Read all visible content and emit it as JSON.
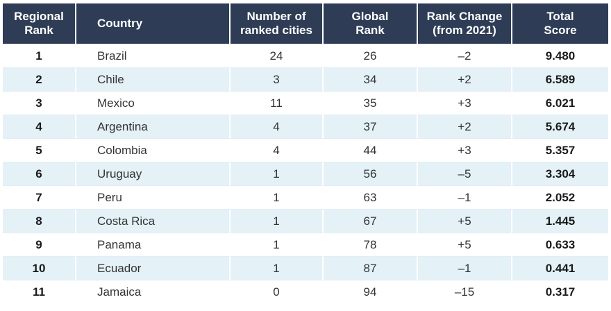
{
  "table": {
    "headers": [
      [
        "Regional",
        "Rank"
      ],
      [
        "Country"
      ],
      [
        "Number of",
        "ranked cities"
      ],
      [
        "Global",
        "Rank"
      ],
      [
        "Rank Change",
        "(from 2021)"
      ],
      [
        "Total",
        "Score"
      ]
    ],
    "rows": [
      {
        "rank": "1",
        "country": "Brazil",
        "cities": "24",
        "global_rank": "26",
        "change": "–2",
        "score": "9.480"
      },
      {
        "rank": "2",
        "country": "Chile",
        "cities": "3",
        "global_rank": "34",
        "change": "+2",
        "score": "6.589"
      },
      {
        "rank": "3",
        "country": "Mexico",
        "cities": "11",
        "global_rank": "35",
        "change": "+3",
        "score": "6.021"
      },
      {
        "rank": "4",
        "country": "Argentina",
        "cities": "4",
        "global_rank": "37",
        "change": "+2",
        "score": "5.674"
      },
      {
        "rank": "5",
        "country": "Colombia",
        "cities": "4",
        "global_rank": "44",
        "change": "+3",
        "score": "5.357"
      },
      {
        "rank": "6",
        "country": "Uruguay",
        "cities": "1",
        "global_rank": "56",
        "change": "–5",
        "score": "3.304"
      },
      {
        "rank": "7",
        "country": "Peru",
        "cities": "1",
        "global_rank": "63",
        "change": "–1",
        "score": "2.052"
      },
      {
        "rank": "8",
        "country": "Costa Rica",
        "cities": "1",
        "global_rank": "67",
        "change": "+5",
        "score": "1.445"
      },
      {
        "rank": "9",
        "country": "Panama",
        "cities": "1",
        "global_rank": "78",
        "change": "+5",
        "score": "0.633"
      },
      {
        "rank": "10",
        "country": "Ecuador",
        "cities": "1",
        "global_rank": "87",
        "change": "–1",
        "score": "0.441"
      },
      {
        "rank": "11",
        "country": "Jamaica",
        "cities": "0",
        "global_rank": "94",
        "change": "–15",
        "score": "0.317"
      }
    ]
  },
  "colors": {
    "header_bg": "#2e3d55",
    "header_text": "#ffffff",
    "stripe_bg": "#e4f1f7",
    "body_text": "#333333"
  }
}
